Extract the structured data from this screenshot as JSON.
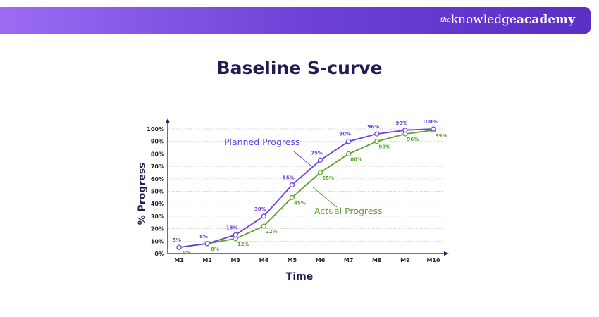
{
  "brand": {
    "prefix": "the",
    "name_light": "knowledge",
    "name_bold": "academy"
  },
  "title": "Baseline S-curve",
  "colors": {
    "planned": "#6a3fe0",
    "actual": "#5aa32e",
    "banner": "#6c3fd6"
  },
  "chart_data": {
    "type": "line",
    "title": "Baseline S-curve",
    "xlabel": "Time",
    "ylabel": "% Progress",
    "categories": [
      "M1",
      "M2",
      "M3",
      "M4",
      "M5",
      "M6",
      "M7",
      "M8",
      "M9",
      "M10"
    ],
    "ylim": [
      0,
      100
    ],
    "yticks": [
      "0%",
      "10%",
      "20%",
      "30%",
      "40%",
      "50%",
      "60%",
      "70%",
      "80%",
      "90%",
      "100%"
    ],
    "grid": true,
    "series": [
      {
        "name": "Planned Progress",
        "values": [
          5,
          8,
          15,
          30,
          55,
          75,
          90,
          96,
          99,
          100
        ],
        "labels": [
          "5%",
          "8%",
          "15%",
          "30%",
          "55%",
          "75%",
          "90%",
          "96%",
          "99%",
          "100%"
        ]
      },
      {
        "name": "Actual Progress",
        "values": [
          5,
          8,
          12,
          22,
          45,
          65,
          80,
          90,
          96,
          99
        ],
        "labels": [
          "5%",
          "8%",
          "12%",
          "22%",
          "45%",
          "65%",
          "80%",
          "90%",
          "96%",
          "99%"
        ]
      }
    ]
  }
}
